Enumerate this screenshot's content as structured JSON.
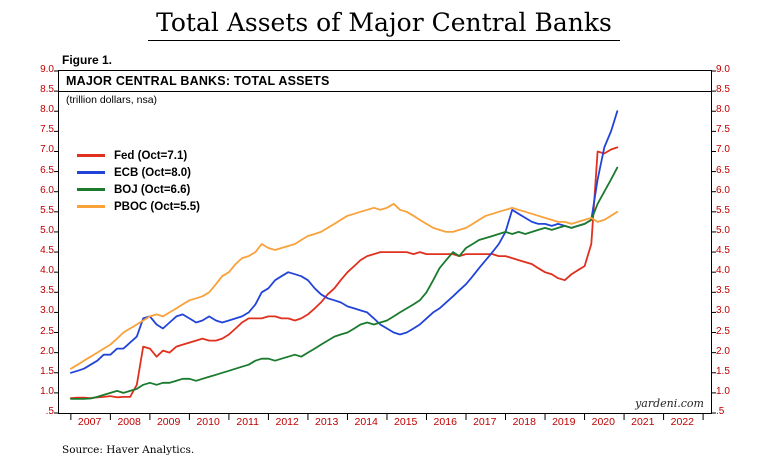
{
  "title": "Total Assets of Major Central Banks",
  "figure_label": "Figure 1.",
  "chart_header": {
    "title": "MAJOR CENTRAL BANKS: TOTAL ASSETS",
    "subtitle": "(trillion dollars, nsa)"
  },
  "watermark": "yardeni.com",
  "source": "Source: Haver Analytics.",
  "colors": {
    "axis_label": "#c00000",
    "frame": "#000000",
    "fed": "#e0301e",
    "ecb": "#2244d8",
    "boj": "#1a7a2e",
    "pboc": "#f9a13a"
  },
  "chart_data": {
    "type": "line",
    "title": "MAJOR CENTRAL BANKS: TOTAL ASSETS",
    "subtitle": "(trillion dollars, nsa)",
    "ylabel": "trillion dollars, nsa",
    "ylim": [
      0.5,
      9.0
    ],
    "y_tick_step": 0.5,
    "y_tick_labels": [
      "9.0",
      "8.5",
      "8.0",
      "7.5",
      "7.0",
      "6.5",
      "6.0",
      "5.5",
      "5.0",
      "4.5",
      "4.0",
      "3.5",
      "3.0",
      "2.5",
      "2.0",
      "1.5",
      "1.0",
      ".5"
    ],
    "xlim": [
      2006.7,
      2023.2
    ],
    "x_year_labels": [
      "2007",
      "2008",
      "2009",
      "2010",
      "2011",
      "2012",
      "2013",
      "2014",
      "2015",
      "2016",
      "2017",
      "2018",
      "2019",
      "2020",
      "2021",
      "2022"
    ],
    "legend_position": "top-left",
    "grid": false,
    "x": [
      2007.0,
      2007.17,
      2007.33,
      2007.5,
      2007.67,
      2007.83,
      2008.0,
      2008.17,
      2008.33,
      2008.5,
      2008.67,
      2008.83,
      2009.0,
      2009.17,
      2009.33,
      2009.5,
      2009.67,
      2009.83,
      2010.0,
      2010.17,
      2010.33,
      2010.5,
      2010.67,
      2010.83,
      2011.0,
      2011.17,
      2011.33,
      2011.5,
      2011.67,
      2011.83,
      2012.0,
      2012.17,
      2012.33,
      2012.5,
      2012.67,
      2012.83,
      2013.0,
      2013.17,
      2013.33,
      2013.5,
      2013.67,
      2013.83,
      2014.0,
      2014.17,
      2014.33,
      2014.5,
      2014.67,
      2014.83,
      2015.0,
      2015.17,
      2015.33,
      2015.5,
      2015.67,
      2015.83,
      2016.0,
      2016.17,
      2016.33,
      2016.5,
      2016.67,
      2016.83,
      2017.0,
      2017.17,
      2017.33,
      2017.5,
      2017.67,
      2017.83,
      2018.0,
      2018.17,
      2018.33,
      2018.5,
      2018.67,
      2018.83,
      2019.0,
      2019.17,
      2019.33,
      2019.5,
      2019.67,
      2019.83,
      2020.0,
      2020.17,
      2020.33,
      2020.5,
      2020.67,
      2020.83
    ],
    "series": [
      {
        "name": "Fed (Oct=7.1)",
        "color": "#e0301e",
        "values": [
          0.87,
          0.88,
          0.88,
          0.87,
          0.89,
          0.9,
          0.92,
          0.89,
          0.9,
          0.9,
          1.2,
          2.15,
          2.1,
          1.9,
          2.05,
          2.0,
          2.15,
          2.2,
          2.25,
          2.3,
          2.35,
          2.3,
          2.3,
          2.35,
          2.45,
          2.6,
          2.75,
          2.85,
          2.85,
          2.85,
          2.9,
          2.9,
          2.85,
          2.85,
          2.8,
          2.85,
          2.95,
          3.1,
          3.25,
          3.45,
          3.6,
          3.8,
          4.0,
          4.15,
          4.3,
          4.4,
          4.45,
          4.5,
          4.5,
          4.5,
          4.5,
          4.5,
          4.45,
          4.5,
          4.45,
          4.45,
          4.45,
          4.45,
          4.45,
          4.4,
          4.45,
          4.45,
          4.45,
          4.45,
          4.45,
          4.4,
          4.4,
          4.35,
          4.3,
          4.25,
          4.2,
          4.1,
          4.0,
          3.95,
          3.85,
          3.8,
          3.95,
          4.05,
          4.15,
          4.7,
          7.0,
          6.95,
          7.05,
          7.1
        ]
      },
      {
        "name": "ECB (Oct=8.0)",
        "color": "#2244d8",
        "values": [
          1.5,
          1.55,
          1.6,
          1.7,
          1.8,
          1.95,
          1.95,
          2.1,
          2.1,
          2.25,
          2.4,
          2.85,
          2.9,
          2.7,
          2.6,
          2.75,
          2.9,
          2.95,
          2.85,
          2.75,
          2.8,
          2.9,
          2.8,
          2.75,
          2.8,
          2.85,
          2.9,
          3.0,
          3.2,
          3.5,
          3.6,
          3.8,
          3.9,
          4.0,
          3.95,
          3.9,
          3.8,
          3.6,
          3.45,
          3.35,
          3.3,
          3.25,
          3.15,
          3.1,
          3.05,
          3.0,
          2.85,
          2.7,
          2.6,
          2.5,
          2.45,
          2.5,
          2.6,
          2.7,
          2.85,
          3.0,
          3.1,
          3.25,
          3.4,
          3.55,
          3.7,
          3.9,
          4.1,
          4.3,
          4.5,
          4.7,
          5.0,
          5.55,
          5.45,
          5.35,
          5.25,
          5.2,
          5.2,
          5.15,
          5.2,
          5.15,
          5.1,
          5.15,
          5.2,
          5.3,
          6.3,
          7.1,
          7.5,
          8.0
        ]
      },
      {
        "name": "BOJ (Oct=6.6)",
        "color": "#1a7a2e",
        "values": [
          0.85,
          0.85,
          0.85,
          0.86,
          0.9,
          0.95,
          1.0,
          1.05,
          1.0,
          1.05,
          1.1,
          1.2,
          1.25,
          1.2,
          1.25,
          1.25,
          1.3,
          1.35,
          1.35,
          1.3,
          1.35,
          1.4,
          1.45,
          1.5,
          1.55,
          1.6,
          1.65,
          1.7,
          1.8,
          1.85,
          1.85,
          1.8,
          1.85,
          1.9,
          1.95,
          1.9,
          2.0,
          2.1,
          2.2,
          2.3,
          2.4,
          2.45,
          2.5,
          2.6,
          2.7,
          2.75,
          2.7,
          2.75,
          2.8,
          2.9,
          3.0,
          3.1,
          3.2,
          3.3,
          3.5,
          3.8,
          4.1,
          4.3,
          4.5,
          4.4,
          4.6,
          4.7,
          4.8,
          4.85,
          4.9,
          4.95,
          5.0,
          4.95,
          5.0,
          4.95,
          5.0,
          5.05,
          5.1,
          5.05,
          5.1,
          5.15,
          5.1,
          5.15,
          5.2,
          5.3,
          5.7,
          6.0,
          6.3,
          6.6
        ]
      },
      {
        "name": "PBOC (Oct=5.5)",
        "color": "#f9a13a",
        "values": [
          1.6,
          1.7,
          1.8,
          1.9,
          2.0,
          2.1,
          2.2,
          2.35,
          2.5,
          2.6,
          2.7,
          2.8,
          2.9,
          2.95,
          2.9,
          3.0,
          3.1,
          3.2,
          3.3,
          3.35,
          3.4,
          3.5,
          3.7,
          3.9,
          4.0,
          4.2,
          4.35,
          4.4,
          4.5,
          4.7,
          4.6,
          4.55,
          4.6,
          4.65,
          4.7,
          4.8,
          4.9,
          4.95,
          5.0,
          5.1,
          5.2,
          5.3,
          5.4,
          5.45,
          5.5,
          5.55,
          5.6,
          5.55,
          5.6,
          5.7,
          5.55,
          5.5,
          5.4,
          5.3,
          5.2,
          5.1,
          5.05,
          5.0,
          5.0,
          5.05,
          5.1,
          5.2,
          5.3,
          5.4,
          5.45,
          5.5,
          5.55,
          5.6,
          5.55,
          5.5,
          5.45,
          5.4,
          5.35,
          5.3,
          5.25,
          5.25,
          5.2,
          5.25,
          5.3,
          5.35,
          5.25,
          5.3,
          5.4,
          5.5
        ]
      }
    ]
  }
}
